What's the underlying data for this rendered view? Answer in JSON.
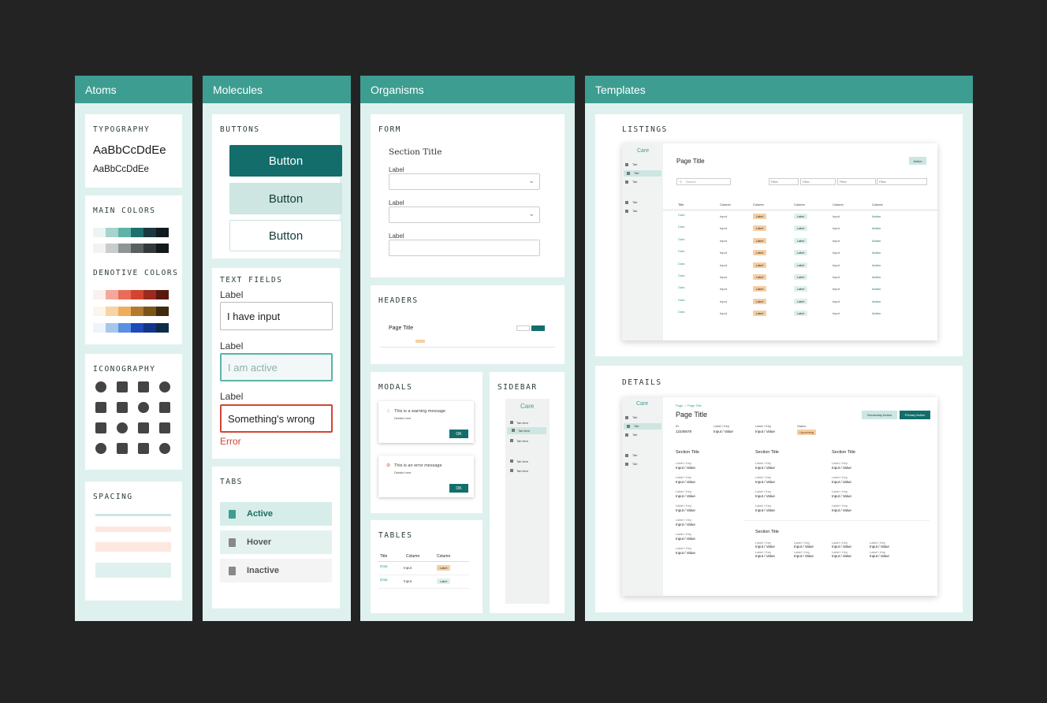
{
  "columns": {
    "atoms": "Atoms",
    "molecules": "Molecules",
    "organisms": "Organisms",
    "templates": "Templates"
  },
  "atoms": {
    "typography": {
      "title": "TYPOGRAPHY",
      "sample_large": "AaBbCcDdEe",
      "sample_small": "AaBbCcDdEe"
    },
    "main_colors": {
      "title": "MAIN COLORS",
      "row1": [
        "#eaf5f3",
        "#a7d3cc",
        "#5fb2a6",
        "#1f6f6f",
        "#1b3840",
        "#111a1e"
      ],
      "row2": [
        "#f2f2f2",
        "#c9cccc",
        "#8f9494",
        "#5a5f60",
        "#32393b",
        "#141a1c"
      ]
    },
    "denotive_colors": {
      "title": "DENOTIVE COLORS",
      "row1": [
        "#fbf0ee",
        "#f4a89c",
        "#ea6c5b",
        "#d2452f",
        "#9a2b1e",
        "#5a1910"
      ],
      "row2": [
        "#fcf5ea",
        "#f7d3a5",
        "#efae5b",
        "#b47a2e",
        "#7c5319",
        "#3f2a0c"
      ],
      "row3": [
        "#eef4fb",
        "#a8c6ec",
        "#5a8fe3",
        "#1f48b9",
        "#12358a",
        "#0e2c4a"
      ]
    },
    "iconography": {
      "title": "ICONOGRAPHY",
      "icons": [
        "hospital-icon",
        "ambulance-icon",
        "id-card-icon",
        "virus-icon",
        "mask-icon",
        "syringe-icon",
        "shield-plus-icon",
        "doctor-icon",
        "calendar-icon",
        "bottle-icon",
        "pill-icon",
        "face-icon",
        "pencil-icon",
        "thermometer-icon",
        "drop-icon",
        "money-icon"
      ]
    },
    "spacing": {
      "title": "SPACING"
    }
  },
  "molecules": {
    "buttons": {
      "title": "BUTTONS",
      "primary": "Button",
      "secondary": "Button",
      "tertiary": "Button"
    },
    "text_fields": {
      "title": "TEXT FIELDS",
      "f1_label": "Label",
      "f1_value": "I have input",
      "f2_label": "Label",
      "f2_value": "I am active",
      "f3_label": "Label",
      "f3_value": "Something's wrong",
      "error": "Error"
    },
    "tabs": {
      "title": "TABS",
      "active": "Active",
      "hover": "Hover",
      "inactive": "Inactive"
    }
  },
  "organisms": {
    "form": {
      "title": "FORM",
      "section_title": "Section Title",
      "label1": "Label",
      "label2": "Label",
      "label3": "Label"
    },
    "headers": {
      "title": "HEADERS",
      "page_title": "Page Title"
    },
    "modals": {
      "title": "MODALS",
      "warning": "This is a warning message",
      "warning_details": "Details here",
      "error": "This is an error message",
      "error_details": "Details here",
      "ok": "OK"
    },
    "sidebar": {
      "title": "SIDEBAR",
      "logo": "Care",
      "items": [
        "Tab item",
        "Tab item",
        "Tab item",
        "Tab item",
        "Tab item"
      ]
    },
    "tables": {
      "title": "TABLES",
      "headers": [
        "Title",
        "Column",
        "Column"
      ],
      "rows": [
        {
          "data": "Data",
          "input": "Input",
          "label": "Label"
        },
        {
          "data": "Data",
          "input": "Input",
          "label": "Label"
        }
      ]
    }
  },
  "templates": {
    "listings": {
      "title": "LISTINGS",
      "logo": "Care",
      "nav": [
        "Tab",
        "Tab",
        "Tab",
        "Tab",
        "Tab"
      ],
      "page_title": "Page Title",
      "action": "Action",
      "search": "Search",
      "filters": [
        "Filter",
        "Filter",
        "Filter",
        "Filter"
      ],
      "headers": [
        "Title",
        "Column",
        "Column",
        "Column",
        "Column",
        "Column"
      ],
      "row": {
        "data": "Data",
        "input": "Input",
        "label1": "Label",
        "label2": "Label",
        "input2": "Input",
        "action": "Action"
      }
    },
    "details": {
      "title": "DETAILS",
      "logo": "Care",
      "nav": [
        "Tab",
        "Tab",
        "Tab",
        "Tab",
        "Tab"
      ],
      "breadcrumb": "Page",
      "breadcrumb2": "Page Title",
      "page_title": "Page Title",
      "secondary": "Secondary Action",
      "primary": "Primary Action",
      "id_label": "ID",
      "id_value": "12345678",
      "kv_label": "Label / Key",
      "kv_value": "Input / Value",
      "status_label": "Status",
      "status_value": "Upcoming",
      "section": "Section Title"
    }
  }
}
